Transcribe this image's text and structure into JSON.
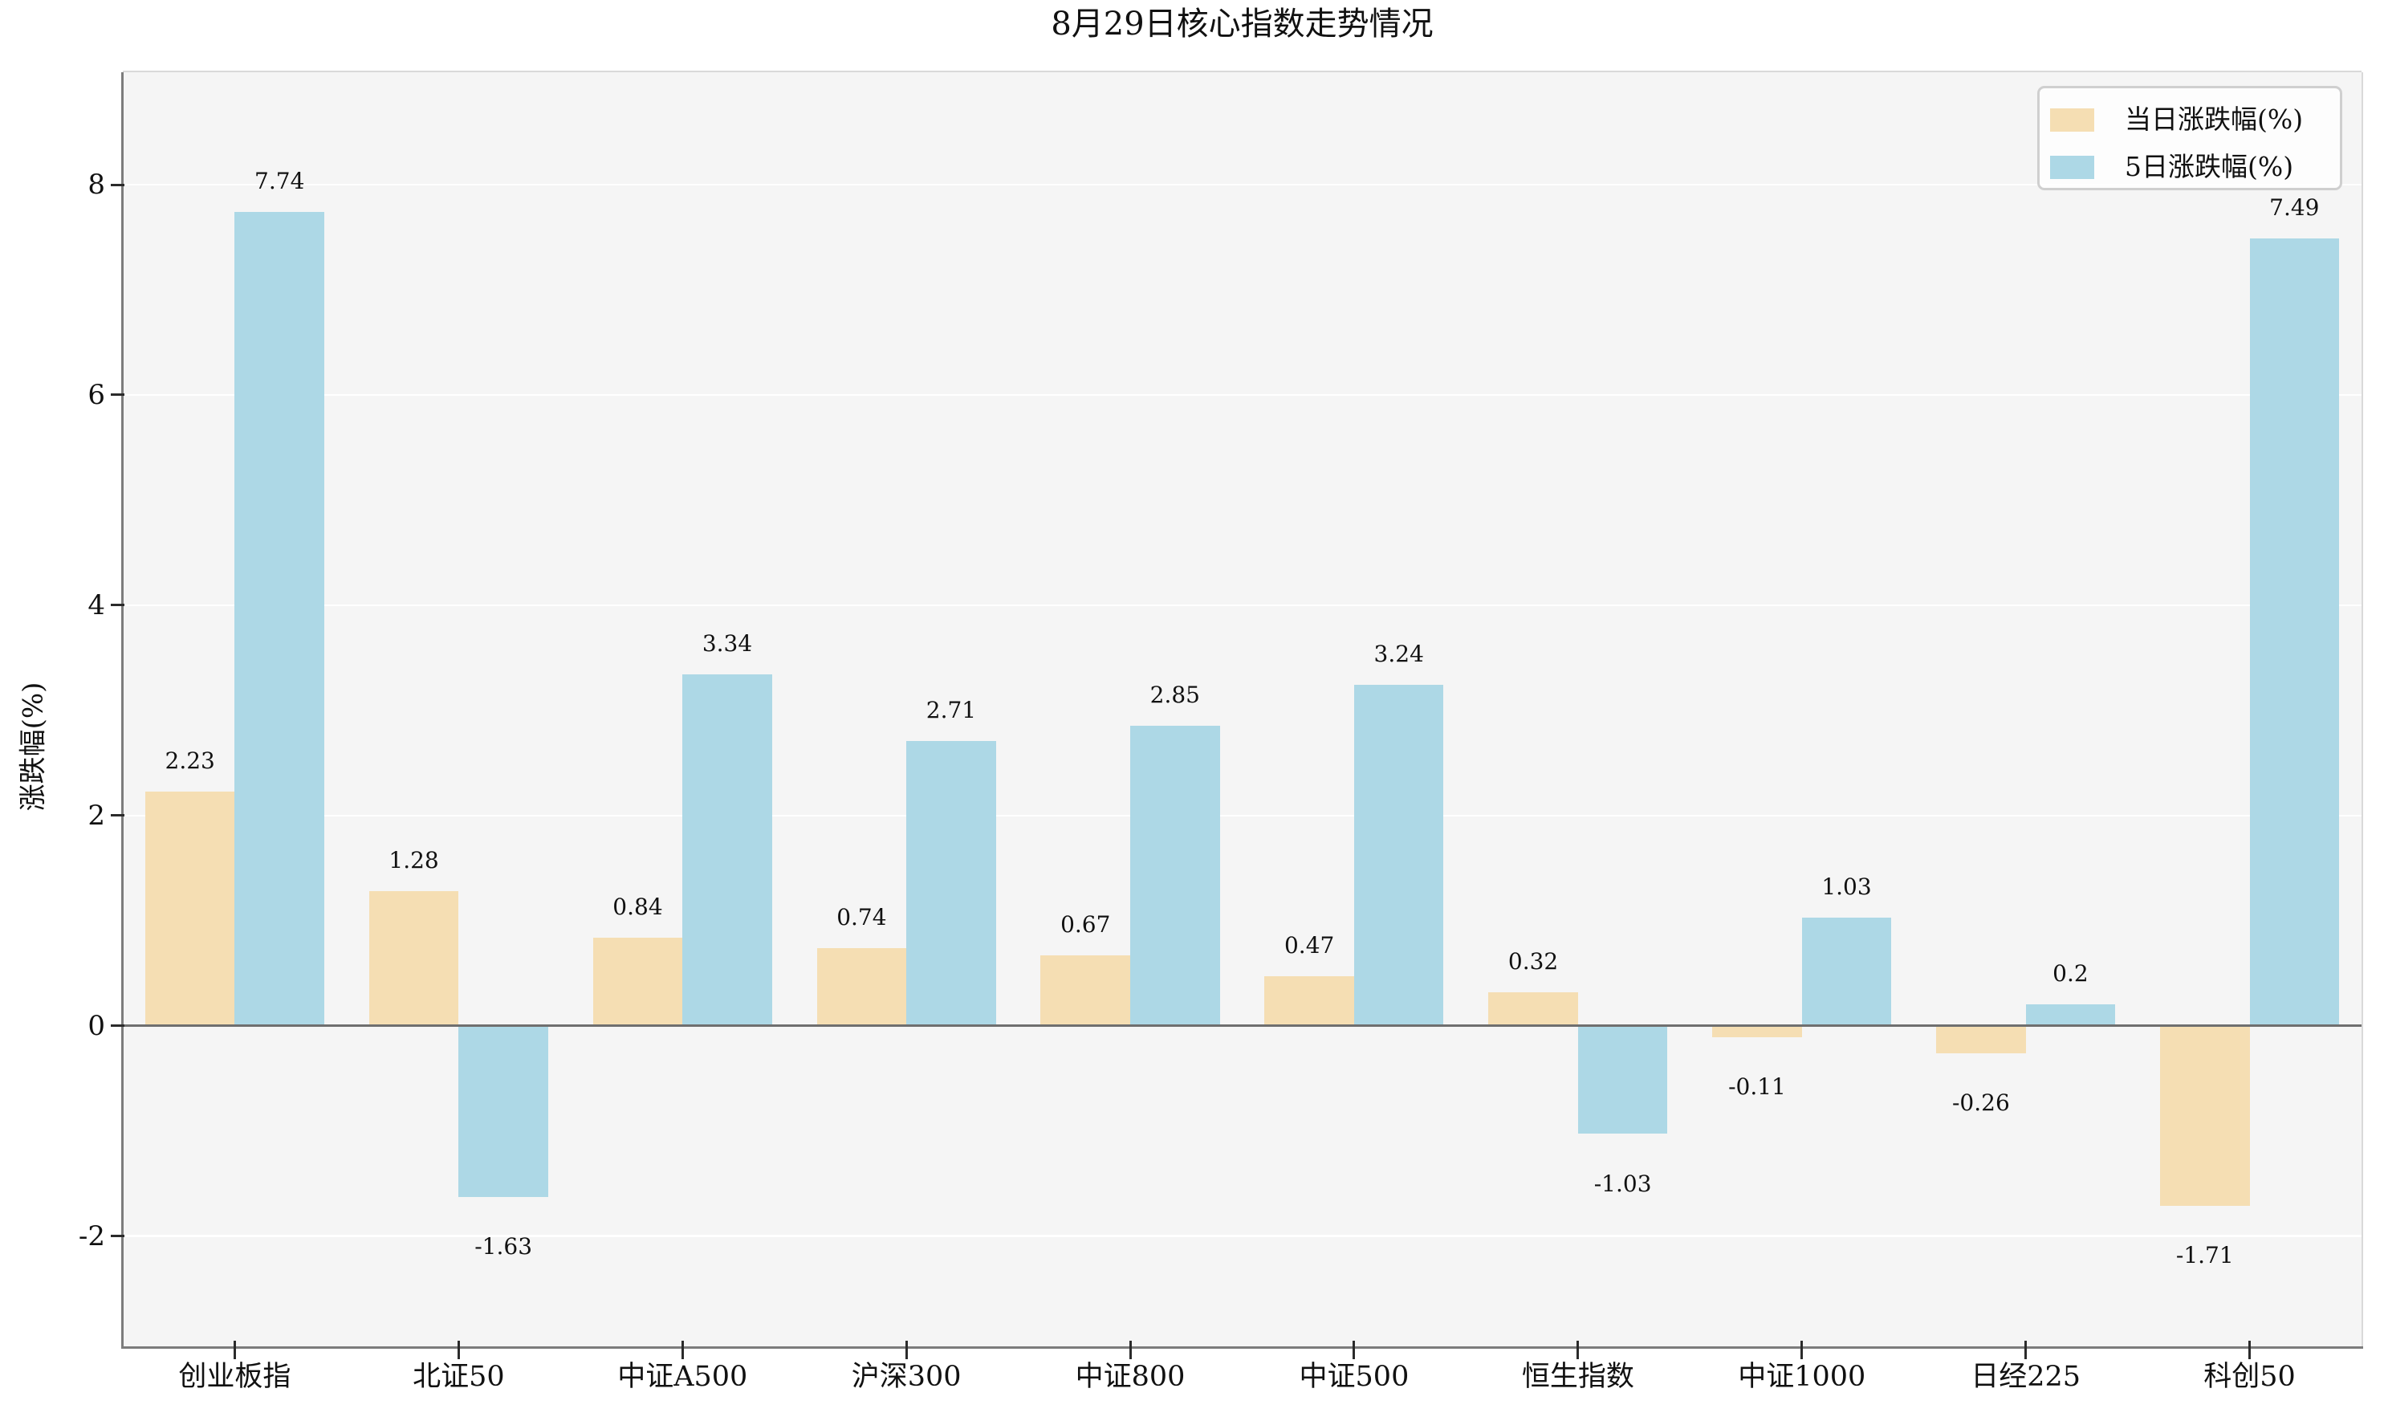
{
  "chart_data": {
    "type": "bar",
    "title": "8月29日核心指数走势情况",
    "ylabel": "涨跌幅(%)",
    "xlabel": "",
    "categories": [
      "创业板指",
      "北证50",
      "中证A500",
      "沪深300",
      "中证800",
      "中证500",
      "恒生指数",
      "中证1000",
      "日经225",
      "科创50"
    ],
    "series": [
      {
        "name": "当日涨跌幅(%)",
        "color": "#f5deb3",
        "values": [
          2.23,
          1.28,
          0.84,
          0.74,
          0.67,
          0.47,
          0.32,
          -0.11,
          -0.26,
          -1.71
        ]
      },
      {
        "name": "5日涨跌幅(%)",
        "color": "#add8e6",
        "values": [
          7.74,
          -1.63,
          3.34,
          2.71,
          2.85,
          3.24,
          -1.03,
          1.03,
          0.2,
          7.49
        ]
      }
    ],
    "yticks": [
      -2,
      0,
      2,
      4,
      6,
      8
    ],
    "ylim": [
      -3.05,
      9.07
    ],
    "grid": "horizontal-white-lines",
    "plot_background": "#f5f5f5",
    "zero_line_color": "#6f6f6f",
    "legend_position": "top-right",
    "bar_group_width": 0.8,
    "value_labels": "outside-bar-ends"
  }
}
